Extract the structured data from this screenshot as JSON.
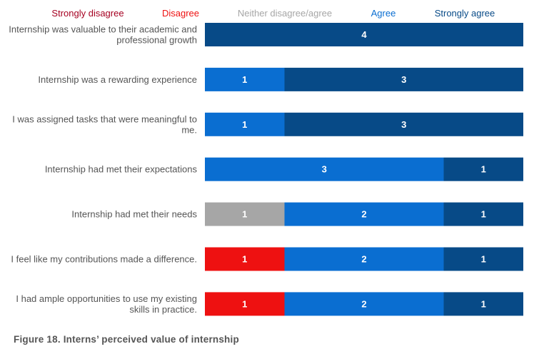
{
  "caption": "Figure 18. Interns’ perceived value of internship",
  "chart_data": {
    "type": "bar",
    "orientation": "horizontal",
    "stacked": true,
    "legend_position": "top",
    "grid": false,
    "xlim": [
      0,
      4
    ],
    "categories": [
      [
        "Internship was valuable to their academic and",
        "professional growth"
      ],
      [
        "Internship was a rewarding experience"
      ],
      [
        "I was assigned tasks that were meaningful to",
        "me."
      ],
      [
        "Internship had met their expectations"
      ],
      [
        "Internship had met their needs"
      ],
      [
        "I feel like my contributions made a difference."
      ],
      [
        "I had ample opportunities to use my existing",
        "skills in practice."
      ]
    ],
    "series": [
      {
        "name": "Strongly disagree",
        "color": "#a50021",
        "values": [
          0,
          0,
          0,
          0,
          0,
          0,
          0
        ]
      },
      {
        "name": "Disagree",
        "color": "#ee1111",
        "values": [
          0,
          0,
          0,
          0,
          0,
          1,
          1
        ]
      },
      {
        "name": "Neither disagree/agree",
        "color": "#a6a6a6",
        "values": [
          0,
          0,
          0,
          0,
          1,
          0,
          0
        ]
      },
      {
        "name": "Agree",
        "color": "#0a6ed1",
        "values": [
          0,
          1,
          1,
          3,
          2,
          2,
          2
        ]
      },
      {
        "name": "Strongly agree",
        "color": "#074a87",
        "values": [
          4,
          3,
          3,
          1,
          1,
          1,
          1
        ]
      }
    ]
  }
}
